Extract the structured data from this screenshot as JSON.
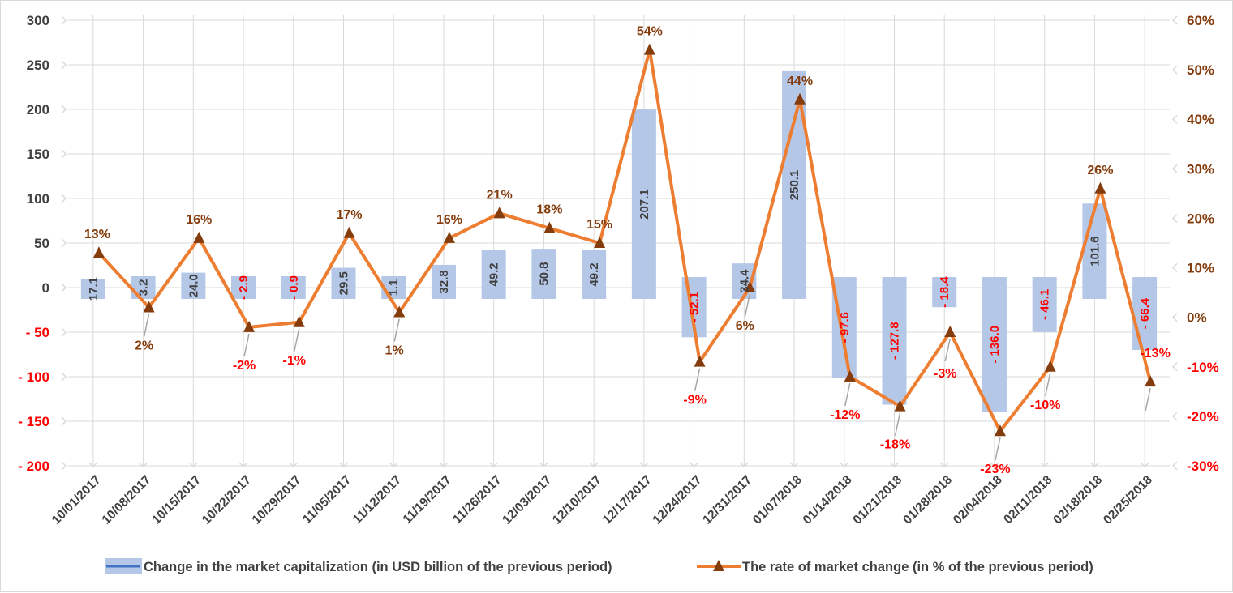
{
  "chart_data": {
    "type": "bar+line",
    "categories": [
      "10/01/2017",
      "10/08/2017",
      "10/15/2017",
      "10/22/2017",
      "10/29/2017",
      "11/05/2017",
      "11/12/2017",
      "11/19/2017",
      "11/26/2017",
      "12/03/2017",
      "12/10/2017",
      "12/17/2017",
      "12/24/2017",
      "12/31/2017",
      "01/07/2018",
      "01/14/2018",
      "01/21/2018",
      "01/28/2018",
      "02/04/2018",
      "02/11/2018",
      "02/18/2018",
      "02/25/2018"
    ],
    "bar_labels": [
      "17.1",
      "3.2",
      "24.0",
      "- 2.9",
      "- 0.9",
      "29.5",
      "1.1",
      "32.8",
      "49.2",
      "50.8",
      "49.2",
      "207.1",
      "- 52.1",
      "34.4",
      "250.1",
      "- 97.6",
      "- 127.8",
      "- 18.4",
      "- 136.0",
      "- 46.1",
      "101.6",
      "- 66.4"
    ],
    "pct_labels": [
      "13%",
      "2%",
      "16%",
      "-2%",
      "-1%",
      "17%",
      "1%",
      "16%",
      "21%",
      "18%",
      "15%",
      "54%",
      "-9%",
      "6%",
      "44%",
      "-12%",
      "-18%",
      "-3%",
      "-23%",
      "-10%",
      "26%",
      "-13%"
    ],
    "series": [
      {
        "name": "Change in the market capitalization  (in USD billion of the previous period)",
        "type": "bar",
        "axis": "left",
        "values": [
          17.1,
          3.2,
          24.0,
          -2.9,
          -0.9,
          29.5,
          1.1,
          32.8,
          49.2,
          50.8,
          49.2,
          207.1,
          -52.1,
          34.4,
          250.1,
          -97.6,
          -127.8,
          -18.4,
          -136.0,
          -46.1,
          101.6,
          -66.4
        ]
      },
      {
        "name": "The rate of market change (in % of the previous period)",
        "type": "line",
        "axis": "right",
        "values": [
          13,
          2,
          16,
          -2,
          -1,
          17,
          1,
          16,
          21,
          18,
          15,
          54,
          -9,
          6,
          44,
          -12,
          -18,
          -3,
          -23,
          -10,
          26,
          -13
        ]
      }
    ],
    "y_left": {
      "min": -200,
      "max": 300,
      "ticks": [
        "300",
        "250",
        "200",
        "150",
        "100",
        "50",
        "0",
        "- 50",
        "- 100",
        "- 150",
        "- 200"
      ]
    },
    "y_right": {
      "min": -30,
      "max": 60,
      "ticks": [
        "60%",
        "50%",
        "40%",
        "30%",
        "20%",
        "10%",
        "0%",
        "-10%",
        "-20%",
        "-30%"
      ]
    },
    "grid": true,
    "legend_position": "bottom",
    "colors": {
      "bar": "#b4c7e7",
      "line": "#ed7d31",
      "marker": "#843c0c",
      "positive_label": "#843c0c",
      "negative_label": "#ff0000",
      "axis_text": "#404040",
      "grid": "#d9d9d9",
      "legend_bar_line": "#4472c4"
    }
  }
}
